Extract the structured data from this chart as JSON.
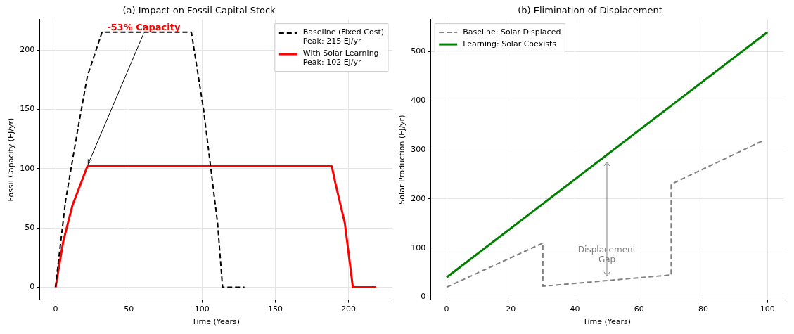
{
  "chart_data": [
    {
      "type": "line",
      "title": "(a) Impact on Fossil Capital Stock",
      "xlabel": "Time (Years)",
      "ylabel": "Fossil Capacity (EJ/yr)",
      "xlim": [
        -11,
        230
      ],
      "ylim": [
        -10.75,
        225.75
      ],
      "xticks": [
        0,
        50,
        100,
        150,
        200
      ],
      "yticks": [
        0,
        50,
        100,
        150,
        200
      ],
      "grid": true,
      "legend": "top right",
      "marker": "none",
      "annotations": [
        {
          "text": "-53% Capacity",
          "x": 21.7,
          "y": 102
        }
      ],
      "series": [
        {
          "name": "Baseline (Fixed Cost)\nPeak: 215 EJ/yr",
          "color": "#000000",
          "line_style": "dashed",
          "x": [
            0,
            0.8,
            6.8,
            14.7,
            21.7,
            31.7,
            92.7,
            101,
            110.6,
            114,
            129
          ],
          "values": [
            0,
            10,
            73,
            130,
            178,
            215,
            215,
            150,
            54,
            0,
            0
          ]
        },
        {
          "name": "With Solar Learning\nPeak: 102 EJ/yr",
          "color": "#ff0000",
          "line_style": "solid",
          "x": [
            0,
            5.2,
            11.5,
            21.7,
            188.6,
            191,
            197.5,
            203,
            219
          ],
          "values": [
            0,
            38.6,
            69,
            102,
            102,
            88,
            54,
            0,
            0
          ]
        }
      ]
    },
    {
      "type": "line",
      "title": "(b) Elimination of Displacement",
      "xlabel": "Time (Years)",
      "ylabel": "Solar Production (EJ/yr)",
      "xlim": [
        -5,
        105
      ],
      "ylim": [
        -6,
        566
      ],
      "xticks": [
        0,
        20,
        40,
        60,
        80,
        100
      ],
      "yticks": [
        0,
        100,
        200,
        300,
        400,
        500
      ],
      "grid": true,
      "legend": "top left",
      "marker": "none",
      "annotations": [
        "Displacement\nGap"
      ],
      "series": [
        {
          "name": "Baseline: Solar Displaced",
          "color": "#808080",
          "line_style": "dashed",
          "x": [
            0,
            30,
            30,
            70,
            70,
            99
          ],
          "values": [
            20,
            110,
            22,
            45,
            230,
            320
          ]
        },
        {
          "name": "Learning: Solar Coexists",
          "color": "#008000",
          "line_style": "solid",
          "x": [
            0,
            100
          ],
          "values": [
            40,
            540
          ]
        }
      ]
    }
  ]
}
